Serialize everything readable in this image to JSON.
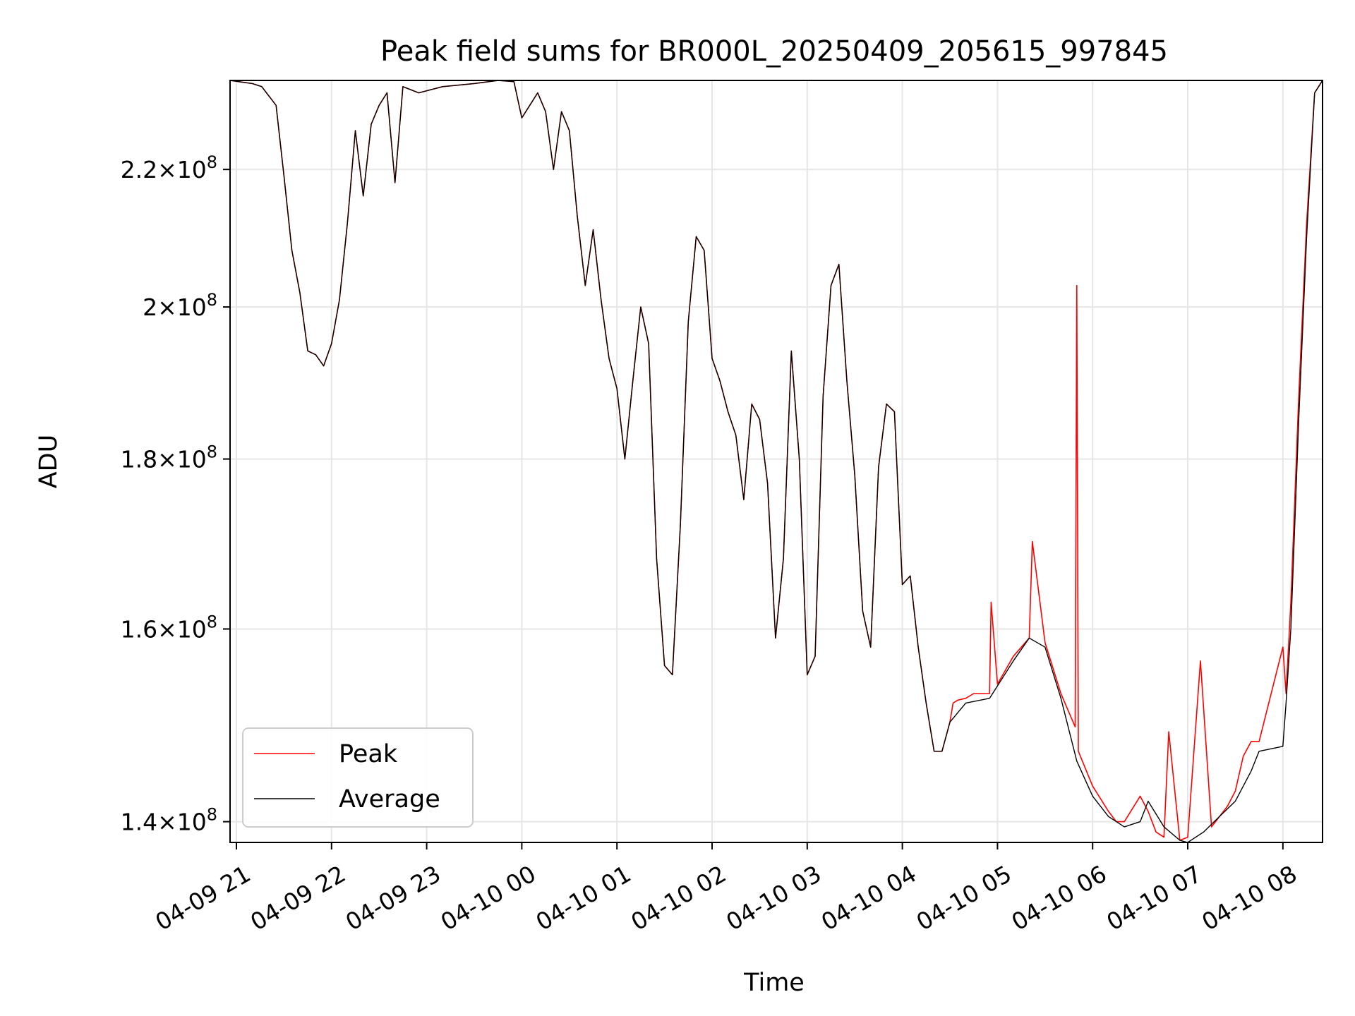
{
  "chart_data": {
    "type": "line",
    "title": "Peak field sums for BR000L_20250409_205615_997845",
    "xlabel": "Time",
    "ylabel": "ADU",
    "y_scale": "log",
    "grid": true,
    "legend_position": "lower-left",
    "xlim": [
      "2025-04-09 20:56",
      "2025-04-10 08:25"
    ],
    "ylim": [
      138000000,
      234000000
    ],
    "x_ticks": [
      "2025-04-09 21:00",
      "2025-04-09 22:00",
      "2025-04-09 23:00",
      "2025-04-10 00:00",
      "2025-04-10 01:00",
      "2025-04-10 02:00",
      "2025-04-10 03:00",
      "2025-04-10 04:00",
      "2025-04-10 05:00",
      "2025-04-10 06:00",
      "2025-04-10 07:00",
      "2025-04-10 08:00"
    ],
    "x_tick_labels": [
      "04-09 21",
      "04-09 22",
      "04-09 23",
      "04-10 00",
      "04-10 01",
      "04-10 02",
      "04-10 03",
      "04-10 04",
      "04-10 05",
      "04-10 06",
      "04-10 07",
      "04-10 08"
    ],
    "y_ticks": [
      140000000,
      160000000,
      180000000,
      200000000,
      220000000
    ],
    "y_tick_mantissas": [
      "1.4",
      "1.6",
      "1.8",
      "2",
      "2.2"
    ],
    "y_tick_times": "×10",
    "y_tick_exponent": "8",
    "series": [
      {
        "name": "Peak",
        "color": "#ff0000",
        "x": [
          "2025-04-09 20:56",
          "2025-04-09 21:10",
          "2025-04-09 21:16",
          "2025-04-09 21:25",
          "2025-04-09 21:30",
          "2025-04-09 21:35",
          "2025-04-09 21:40",
          "2025-04-09 21:45",
          "2025-04-09 21:50",
          "2025-04-09 21:55",
          "2025-04-09 22:00",
          "2025-04-09 22:05",
          "2025-04-09 22:10",
          "2025-04-09 22:15",
          "2025-04-09 22:20",
          "2025-04-09 22:25",
          "2025-04-09 22:30",
          "2025-04-09 22:35",
          "2025-04-09 22:40",
          "2025-04-09 22:45",
          "2025-04-09 22:55",
          "2025-04-09 23:10",
          "2025-04-09 23:30",
          "2025-04-09 23:45",
          "2025-04-09 23:55",
          "2025-04-10 00:00",
          "2025-04-10 00:10",
          "2025-04-10 00:15",
          "2025-04-10 00:20",
          "2025-04-10 00:25",
          "2025-04-10 00:30",
          "2025-04-10 00:35",
          "2025-04-10 00:40",
          "2025-04-10 00:45",
          "2025-04-10 00:50",
          "2025-04-10 00:55",
          "2025-04-10 01:00",
          "2025-04-10 01:05",
          "2025-04-10 01:10",
          "2025-04-10 01:15",
          "2025-04-10 01:20",
          "2025-04-10 01:25",
          "2025-04-10 01:30",
          "2025-04-10 01:35",
          "2025-04-10 01:40",
          "2025-04-10 01:45",
          "2025-04-10 01:50",
          "2025-04-10 01:55",
          "2025-04-10 02:00",
          "2025-04-10 02:05",
          "2025-04-10 02:10",
          "2025-04-10 02:15",
          "2025-04-10 02:20",
          "2025-04-10 02:25",
          "2025-04-10 02:30",
          "2025-04-10 02:35",
          "2025-04-10 02:40",
          "2025-04-10 02:45",
          "2025-04-10 02:50",
          "2025-04-10 02:55",
          "2025-04-10 03:00",
          "2025-04-10 03:05",
          "2025-04-10 03:10",
          "2025-04-10 03:15",
          "2025-04-10 03:20",
          "2025-04-10 03:25",
          "2025-04-10 03:30",
          "2025-04-10 03:35",
          "2025-04-10 03:40",
          "2025-04-10 03:45",
          "2025-04-10 03:50",
          "2025-04-10 03:55",
          "2025-04-10 04:00",
          "2025-04-10 04:05",
          "2025-04-10 04:10",
          "2025-04-10 04:15",
          "2025-04-10 04:20",
          "2025-04-10 04:25",
          "2025-04-10 04:30",
          "2025-04-10 04:32",
          "2025-04-10 04:35",
          "2025-04-10 04:40",
          "2025-04-10 04:45",
          "2025-04-10 04:55",
          "2025-04-10 04:56",
          "2025-04-10 05:00",
          "2025-04-10 05:10",
          "2025-04-10 05:20",
          "2025-04-10 05:22",
          "2025-04-10 05:30",
          "2025-04-10 05:40",
          "2025-04-10 05:49",
          "2025-04-10 05:50",
          "2025-04-10 05:51",
          "2025-04-10 06:00",
          "2025-04-10 06:10",
          "2025-04-10 06:15",
          "2025-04-10 06:20",
          "2025-04-10 06:30",
          "2025-04-10 06:35",
          "2025-04-10 06:40",
          "2025-04-10 06:45",
          "2025-04-10 06:48",
          "2025-04-10 06:55",
          "2025-04-10 07:00",
          "2025-04-10 07:08",
          "2025-04-10 07:15",
          "2025-04-10 07:20",
          "2025-04-10 07:25",
          "2025-04-10 07:30",
          "2025-04-10 07:35",
          "2025-04-10 07:40",
          "2025-04-10 07:45",
          "2025-04-10 08:00",
          "2025-04-10 08:02",
          "2025-04-10 08:05",
          "2025-04-10 08:10",
          "2025-04-10 08:15",
          "2025-04-10 08:20",
          "2025-04-10 08:25"
        ],
        "y": [
          234000000,
          233500000,
          233000000,
          230000000,
          219000000,
          208000000,
          202000000,
          194000000,
          193500000,
          192000000,
          195000000,
          201000000,
          212000000,
          226000000,
          216000000,
          227000000,
          230000000,
          232000000,
          218000000,
          233000000,
          232000000,
          233000000,
          233500000,
          234000000,
          233800000,
          228000000,
          232000000,
          229000000,
          220000000,
          229000000,
          226000000,
          213000000,
          203000000,
          211000000,
          201000000,
          193000000,
          189000000,
          180000000,
          190000000,
          200000000,
          195000000,
          168000000,
          156000000,
          155000000,
          172000000,
          198000000,
          210000000,
          208000000,
          193000000,
          190000000,
          186000000,
          183000000,
          175000000,
          187000000,
          185000000,
          177000000,
          159000000,
          168000000,
          194000000,
          180000000,
          155000000,
          157000000,
          188000000,
          203000000,
          206000000,
          190000000,
          178000000,
          162000000,
          158000000,
          179000000,
          187000000,
          186000000,
          165000000,
          166000000,
          158000000,
          152000000,
          147000000,
          147000000,
          150000000,
          152000000,
          152300000,
          152500000,
          153000000,
          153000000,
          163000000,
          154000000,
          157000000,
          159000000,
          170000000,
          158500000,
          153000000,
          149500000,
          203000000,
          147000000,
          143500000,
          141000000,
          140000000,
          140000000,
          142500000,
          141000000,
          139000000,
          138500000,
          149000000,
          138200000,
          138500000,
          156500000,
          139500000,
          140500000,
          141500000,
          143000000,
          146500000,
          148000000,
          148000000,
          158000000,
          153000000,
          163000000,
          188000000,
          212000000,
          232000000,
          234000000
        ]
      },
      {
        "name": "Average",
        "color": "#000000",
        "x": [
          "2025-04-09 20:56",
          "2025-04-09 21:10",
          "2025-04-09 21:16",
          "2025-04-09 21:25",
          "2025-04-09 21:30",
          "2025-04-09 21:35",
          "2025-04-09 21:40",
          "2025-04-09 21:45",
          "2025-04-09 21:50",
          "2025-04-09 21:55",
          "2025-04-09 22:00",
          "2025-04-09 22:05",
          "2025-04-09 22:10",
          "2025-04-09 22:15",
          "2025-04-09 22:20",
          "2025-04-09 22:25",
          "2025-04-09 22:30",
          "2025-04-09 22:35",
          "2025-04-09 22:40",
          "2025-04-09 22:45",
          "2025-04-09 22:55",
          "2025-04-09 23:10",
          "2025-04-09 23:30",
          "2025-04-09 23:45",
          "2025-04-09 23:55",
          "2025-04-10 00:00",
          "2025-04-10 00:10",
          "2025-04-10 00:15",
          "2025-04-10 00:20",
          "2025-04-10 00:25",
          "2025-04-10 00:30",
          "2025-04-10 00:35",
          "2025-04-10 00:40",
          "2025-04-10 00:45",
          "2025-04-10 00:50",
          "2025-04-10 00:55",
          "2025-04-10 01:00",
          "2025-04-10 01:05",
          "2025-04-10 01:10",
          "2025-04-10 01:15",
          "2025-04-10 01:20",
          "2025-04-10 01:25",
          "2025-04-10 01:30",
          "2025-04-10 01:35",
          "2025-04-10 01:40",
          "2025-04-10 01:45",
          "2025-04-10 01:50",
          "2025-04-10 01:55",
          "2025-04-10 02:00",
          "2025-04-10 02:05",
          "2025-04-10 02:10",
          "2025-04-10 02:15",
          "2025-04-10 02:20",
          "2025-04-10 02:25",
          "2025-04-10 02:30",
          "2025-04-10 02:35",
          "2025-04-10 02:40",
          "2025-04-10 02:45",
          "2025-04-10 02:50",
          "2025-04-10 02:55",
          "2025-04-10 03:00",
          "2025-04-10 03:05",
          "2025-04-10 03:10",
          "2025-04-10 03:15",
          "2025-04-10 03:20",
          "2025-04-10 03:25",
          "2025-04-10 03:30",
          "2025-04-10 03:35",
          "2025-04-10 03:40",
          "2025-04-10 03:45",
          "2025-04-10 03:50",
          "2025-04-10 03:55",
          "2025-04-10 04:00",
          "2025-04-10 04:05",
          "2025-04-10 04:10",
          "2025-04-10 04:15",
          "2025-04-10 04:20",
          "2025-04-10 04:25",
          "2025-04-10 04:30",
          "2025-04-10 04:40",
          "2025-04-10 04:55",
          "2025-04-10 05:10",
          "2025-04-10 05:20",
          "2025-04-10 05:30",
          "2025-04-10 05:40",
          "2025-04-10 05:50",
          "2025-04-10 06:00",
          "2025-04-10 06:10",
          "2025-04-10 06:20",
          "2025-04-10 06:30",
          "2025-04-10 06:35",
          "2025-04-10 06:45",
          "2025-04-10 06:55",
          "2025-04-10 07:00",
          "2025-04-10 07:10",
          "2025-04-10 07:20",
          "2025-04-10 07:30",
          "2025-04-10 07:40",
          "2025-04-10 07:45",
          "2025-04-10 08:00",
          "2025-04-10 08:02",
          "2025-04-10 08:05",
          "2025-04-10 08:10",
          "2025-04-10 08:15",
          "2025-04-10 08:20",
          "2025-04-10 08:25"
        ],
        "y": [
          234000000,
          233500000,
          233000000,
          230000000,
          219000000,
          208000000,
          202000000,
          194000000,
          193500000,
          192000000,
          195000000,
          201000000,
          212000000,
          226000000,
          216000000,
          227000000,
          230000000,
          232000000,
          218000000,
          233000000,
          232000000,
          233000000,
          233500000,
          234000000,
          233800000,
          228000000,
          232000000,
          229000000,
          220000000,
          229000000,
          226000000,
          213000000,
          203000000,
          211000000,
          201000000,
          193000000,
          189000000,
          180000000,
          190000000,
          200000000,
          195000000,
          168000000,
          156000000,
          155000000,
          172000000,
          198000000,
          210000000,
          208000000,
          193000000,
          190000000,
          186000000,
          183000000,
          175000000,
          187000000,
          185000000,
          177000000,
          159000000,
          168000000,
          194000000,
          180000000,
          155000000,
          157000000,
          188000000,
          203000000,
          206000000,
          190000000,
          178000000,
          162000000,
          158000000,
          179000000,
          187000000,
          186000000,
          165000000,
          166000000,
          158000000,
          152000000,
          147000000,
          147000000,
          150000000,
          152000000,
          152500000,
          156500000,
          159000000,
          158000000,
          152500000,
          146000000,
          142500000,
          140500000,
          139500000,
          140000000,
          142000000,
          139500000,
          138200000,
          138000000,
          139000000,
          140500000,
          142000000,
          145000000,
          147000000,
          147500000,
          152000000,
          160000000,
          185000000,
          210000000,
          232000000,
          234000000
        ]
      }
    ]
  }
}
